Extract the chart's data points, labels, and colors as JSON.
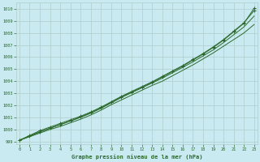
{
  "title": "Graphe pression niveau de la mer (hPa)",
  "bg_color": "#c8eaf0",
  "grid_color": "#b0cccc",
  "line_color": "#2d6a2d",
  "x_ticks": [
    0,
    1,
    2,
    3,
    4,
    5,
    6,
    7,
    8,
    9,
    10,
    11,
    12,
    13,
    14,
    15,
    16,
    17,
    18,
    19,
    20,
    21,
    22,
    23
  ],
  "ylim": [
    998.8,
    1010.5
  ],
  "xlim": [
    -0.3,
    23.3
  ],
  "y_ticks": [
    999,
    1000,
    1001,
    1002,
    1003,
    1004,
    1005,
    1006,
    1007,
    1008,
    1009,
    1010
  ],
  "series1": [
    999.1,
    999.4,
    999.7,
    1000.0,
    1000.25,
    1000.55,
    1000.85,
    1001.2,
    1001.6,
    1002.05,
    1002.45,
    1002.85,
    1003.25,
    1003.65,
    1004.0,
    1004.45,
    1004.9,
    1005.35,
    1005.85,
    1006.35,
    1006.9,
    1007.45,
    1008.0,
    1008.7
  ],
  "series2": [
    999.1,
    999.45,
    999.8,
    1000.1,
    1000.4,
    1000.7,
    1001.0,
    1001.35,
    1001.75,
    1002.2,
    1002.65,
    1003.05,
    1003.45,
    1003.85,
    1004.25,
    1004.7,
    1005.15,
    1005.6,
    1006.1,
    1006.6,
    1007.2,
    1007.85,
    1008.5,
    1009.4
  ],
  "series3": [
    999.1,
    999.5,
    999.9,
    1000.2,
    1000.5,
    1000.8,
    1001.1,
    1001.45,
    1001.85,
    1002.3,
    1002.75,
    1003.15,
    1003.55,
    1003.95,
    1004.4,
    1004.85,
    1005.3,
    1005.8,
    1006.3,
    1006.85,
    1007.45,
    1008.15,
    1008.85,
    1009.85
  ],
  "series4": [
    999.1,
    999.45,
    999.8,
    1000.1,
    1000.4,
    1000.7,
    1001.05,
    1001.4,
    1001.8,
    1002.25,
    1002.7,
    1003.1,
    1003.5,
    1003.9,
    1004.35,
    1004.8,
    1005.25,
    1005.75,
    1006.25,
    1006.8,
    1007.4,
    1008.1,
    1008.8,
    1010.05
  ]
}
